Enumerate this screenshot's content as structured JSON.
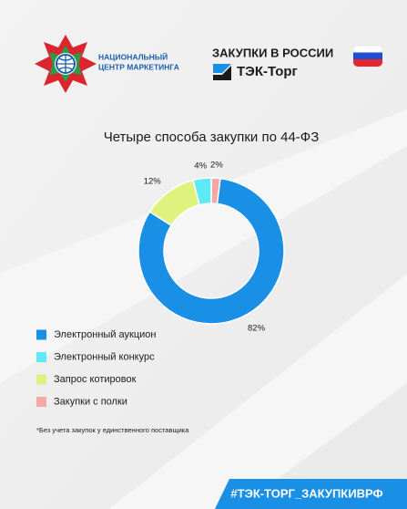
{
  "header": {
    "org_line1": "НАЦИОНАЛЬНЫЙ",
    "org_line2": "ЦЕНТР МАРКЕТИНГА",
    "tagline": "ЗАКУПКИ В РОССИИ",
    "brand": "ТЭК-Торг"
  },
  "chart_data": {
    "type": "donut",
    "title": "Четыре способа закупки по 44-ФЗ",
    "categories": [
      "Электронный аукцион",
      "Электронный конкурс",
      "Запрос котировок",
      "Закупки с полки"
    ],
    "values": [
      82,
      4,
      12,
      2
    ],
    "value_labels": [
      "82%",
      "4%",
      "12%",
      "2%"
    ],
    "colors": [
      "#1a8fe6",
      "#5fe9f6",
      "#dff27e",
      "#f6a7a5"
    ]
  },
  "footnote": "*Без учета закупок у единственного поставщика",
  "hashtag": "#ТЭК-ТОРГ_ЗАКУПКИВРФ"
}
